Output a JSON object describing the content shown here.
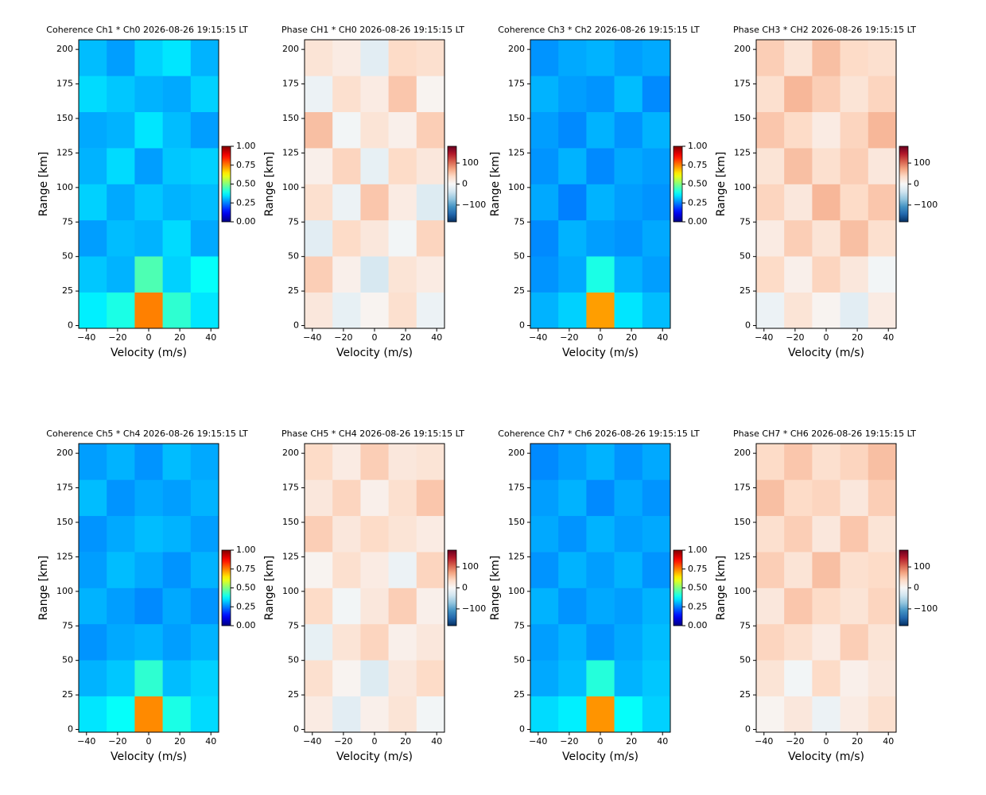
{
  "chart_data": [
    {
      "type": "heatmap",
      "title": "Coherence Ch1 * Ch0 2026-08-26 19:15:15 LT",
      "xlabel": "Velocity (m/s)",
      "ylabel": "Range [km]",
      "colormap": "jet",
      "xlim": [
        -45,
        45
      ],
      "ylim": [
        -2,
        207
      ],
      "xticks": [
        {
          "value": -40,
          "label": "−40"
        },
        {
          "value": -20,
          "label": "−20"
        },
        0,
        20,
        40
      ],
      "yticks": [
        0,
        25,
        50,
        75,
        100,
        125,
        150,
        175,
        200
      ],
      "clim": [
        0,
        1
      ],
      "cticks": [
        {
          "value": 0,
          "label": "0.00"
        },
        0.25,
        {
          "value": 0.5,
          "label": "0.50"
        },
        0.75,
        {
          "value": 1,
          "label": "1.00"
        }
      ],
      "z": [
        [
          0.36,
          0.4,
          0.75,
          0.42,
          0.35
        ],
        [
          0.32,
          0.3,
          0.45,
          0.33,
          0.38
        ],
        [
          0.28,
          0.31,
          0.3,
          0.34,
          0.29
        ],
        [
          0.33,
          0.29,
          0.32,
          0.3,
          0.31
        ],
        [
          0.3,
          0.34,
          0.28,
          0.32,
          0.33
        ],
        [
          0.29,
          0.3,
          0.35,
          0.31,
          0.28
        ],
        [
          0.34,
          0.32,
          0.3,
          0.29,
          0.33
        ],
        [
          0.31,
          0.28,
          0.33,
          0.35,
          0.3
        ]
      ]
    },
    {
      "type": "heatmap",
      "title": "Phase CH1 * CH0 2026-08-26 19:15:15 LT",
      "xlabel": "Velocity (m/s)",
      "ylabel": "Range [km]",
      "colormap": "RdBu_r",
      "xlim": [
        -45,
        45
      ],
      "ylim": [
        -2,
        207
      ],
      "xticks": [
        {
          "value": -40,
          "label": "−40"
        },
        {
          "value": -20,
          "label": "−20"
        },
        0,
        20,
        40
      ],
      "yticks": [
        0,
        25,
        50,
        75,
        100,
        125,
        150,
        175,
        200
      ],
      "clim": [
        -180,
        180
      ],
      "cticks": [
        {
          "value": -100,
          "label": "−100"
        },
        0,
        100
      ],
      "z": [
        [
          20,
          -15,
          5,
          30,
          -10
        ],
        [
          45,
          10,
          -30,
          25,
          15
        ],
        [
          -20,
          35,
          20,
          -5,
          40
        ],
        [
          30,
          -10,
          50,
          15,
          -25
        ],
        [
          10,
          40,
          -15,
          35,
          20
        ],
        [
          55,
          -5,
          25,
          10,
          45
        ],
        [
          -10,
          30,
          15,
          50,
          5
        ],
        [
          25,
          15,
          -20,
          35,
          30
        ]
      ]
    },
    {
      "type": "heatmap",
      "title": "Coherence Ch3 * Ch2 2026-08-26 19:15:15 LT",
      "xlabel": "Velocity (m/s)",
      "ylabel": "Range [km]",
      "colormap": "jet",
      "xlim": [
        -45,
        45
      ],
      "ylim": [
        -2,
        207
      ],
      "xticks": [
        {
          "value": -40,
          "label": "−40"
        },
        {
          "value": -20,
          "label": "−20"
        },
        0,
        20,
        40
      ],
      "yticks": [
        0,
        25,
        50,
        75,
        100,
        125,
        150,
        175,
        200
      ],
      "clim": [
        0,
        1
      ],
      "cticks": [
        {
          "value": 0,
          "label": "0.00"
        },
        0.25,
        {
          "value": 0.5,
          "label": "0.50"
        },
        0.75,
        {
          "value": 1,
          "label": "1.00"
        }
      ],
      "z": [
        [
          0.3,
          0.33,
          0.72,
          0.35,
          0.31
        ],
        [
          0.27,
          0.29,
          0.4,
          0.3,
          0.28
        ],
        [
          0.26,
          0.3,
          0.28,
          0.27,
          0.29
        ],
        [
          0.29,
          0.25,
          0.3,
          0.28,
          0.27
        ],
        [
          0.27,
          0.3,
          0.26,
          0.29,
          0.28
        ],
        [
          0.28,
          0.26,
          0.3,
          0.27,
          0.3
        ],
        [
          0.3,
          0.28,
          0.27,
          0.31,
          0.26
        ],
        [
          0.27,
          0.29,
          0.3,
          0.28,
          0.29
        ]
      ]
    },
    {
      "type": "heatmap",
      "title": "Phase CH3 * CH2 2026-08-26 19:15:15 LT",
      "xlabel": "Velocity (m/s)",
      "ylabel": "Range [km]",
      "colormap": "RdBu_r",
      "xlim": [
        -45,
        45
      ],
      "ylim": [
        -2,
        207
      ],
      "xticks": [
        {
          "value": -40,
          "label": "−40"
        },
        {
          "value": -20,
          "label": "−20"
        },
        0,
        20,
        40
      ],
      "yticks": [
        0,
        25,
        50,
        75,
        100,
        125,
        150,
        175,
        200
      ],
      "clim": [
        -180,
        180
      ],
      "cticks": [
        {
          "value": -100,
          "label": "−100"
        },
        0,
        100
      ],
      "z": [
        [
          -10,
          25,
          5,
          -20,
          15
        ],
        [
          35,
          10,
          40,
          20,
          -5
        ],
        [
          15,
          45,
          25,
          55,
          30
        ],
        [
          40,
          20,
          60,
          35,
          50
        ],
        [
          25,
          55,
          30,
          45,
          20
        ],
        [
          50,
          35,
          15,
          40,
          60
        ],
        [
          30,
          60,
          45,
          25,
          40
        ],
        [
          45,
          25,
          55,
          35,
          30
        ]
      ]
    },
    {
      "type": "heatmap",
      "title": "Coherence Ch5 * Ch4 2026-08-26 19:15:15 LT",
      "xlabel": "Velocity (m/s)",
      "ylabel": "Range [km]",
      "colormap": "jet",
      "xlim": [
        -45,
        45
      ],
      "ylim": [
        -2,
        207
      ],
      "xticks": [
        {
          "value": -40,
          "label": "−40"
        },
        {
          "value": -20,
          "label": "−20"
        },
        0,
        20,
        40
      ],
      "yticks": [
        0,
        25,
        50,
        75,
        100,
        125,
        150,
        175,
        200
      ],
      "clim": [
        0,
        1
      ],
      "cticks": [
        {
          "value": 0,
          "label": "0.00"
        },
        0.25,
        {
          "value": 0.5,
          "label": "0.50"
        },
        0.75,
        {
          "value": 1,
          "label": "1.00"
        }
      ],
      "z": [
        [
          0.35,
          0.38,
          0.74,
          0.4,
          0.34
        ],
        [
          0.3,
          0.32,
          0.42,
          0.31,
          0.33
        ],
        [
          0.27,
          0.29,
          0.3,
          0.28,
          0.3
        ],
        [
          0.3,
          0.28,
          0.26,
          0.29,
          0.27
        ],
        [
          0.28,
          0.31,
          0.29,
          0.27,
          0.3
        ],
        [
          0.27,
          0.29,
          0.31,
          0.3,
          0.28
        ],
        [
          0.31,
          0.27,
          0.29,
          0.28,
          0.3
        ],
        [
          0.28,
          0.3,
          0.27,
          0.31,
          0.29
        ]
      ]
    },
    {
      "type": "heatmap",
      "title": "Phase CH5 * CH4 2026-08-26 19:15:15 LT",
      "xlabel": "Velocity (m/s)",
      "ylabel": "Range [km]",
      "colormap": "RdBu_r",
      "xlim": [
        -45,
        45
      ],
      "ylim": [
        -2,
        207
      ],
      "xticks": [
        {
          "value": -40,
          "label": "−40"
        },
        {
          "value": -20,
          "label": "−20"
        },
        0,
        20,
        40
      ],
      "yticks": [
        0,
        25,
        50,
        75,
        100,
        125,
        150,
        175,
        200
      ],
      "clim": [
        -180,
        180
      ],
      "cticks": [
        {
          "value": -100,
          "label": "−100"
        },
        0,
        100
      ],
      "z": [
        [
          15,
          -20,
          10,
          25,
          -5
        ],
        [
          30,
          5,
          -25,
          20,
          35
        ],
        [
          -15,
          25,
          40,
          10,
          20
        ],
        [
          35,
          -5,
          20,
          45,
          10
        ],
        [
          5,
          30,
          15,
          -10,
          40
        ],
        [
          45,
          20,
          35,
          25,
          15
        ],
        [
          20,
          40,
          10,
          30,
          50
        ],
        [
          35,
          15,
          45,
          20,
          25
        ]
      ]
    },
    {
      "type": "heatmap",
      "title": "Coherence Ch7 * Ch6 2026-08-26 19:15:15 LT",
      "xlabel": "Velocity (m/s)",
      "ylabel": "Range [km]",
      "colormap": "jet",
      "xlim": [
        -45,
        45
      ],
      "ylim": [
        -2,
        207
      ],
      "xticks": [
        {
          "value": -40,
          "label": "−40"
        },
        {
          "value": -20,
          "label": "−20"
        },
        0,
        20,
        40
      ],
      "yticks": [
        0,
        25,
        50,
        75,
        100,
        125,
        150,
        175,
        200
      ],
      "clim": [
        0,
        1
      ],
      "cticks": [
        {
          "value": 0,
          "label": "0.00"
        },
        0.25,
        {
          "value": 0.5,
          "label": "0.50"
        },
        0.75,
        {
          "value": 1,
          "label": "1.00"
        }
      ],
      "z": [
        [
          0.34,
          0.36,
          0.73,
          0.38,
          0.33
        ],
        [
          0.29,
          0.31,
          0.41,
          0.3,
          0.32
        ],
        [
          0.28,
          0.3,
          0.27,
          0.29,
          0.31
        ],
        [
          0.3,
          0.27,
          0.29,
          0.28,
          0.3
        ],
        [
          0.27,
          0.3,
          0.28,
          0.3,
          0.27
        ],
        [
          0.29,
          0.27,
          0.3,
          0.28,
          0.29
        ],
        [
          0.28,
          0.3,
          0.26,
          0.29,
          0.27
        ],
        [
          0.26,
          0.28,
          0.3,
          0.27,
          0.29
        ]
      ]
    },
    {
      "type": "heatmap",
      "title": "Phase CH7 * CH6 2026-08-26 19:15:15 LT",
      "xlabel": "Velocity (m/s)",
      "ylabel": "Range [km]",
      "colormap": "RdBu_r",
      "xlim": [
        -45,
        45
      ],
      "ylim": [
        -2,
        207
      ],
      "xticks": [
        {
          "value": -40,
          "label": "−40"
        },
        {
          "value": -20,
          "label": "−20"
        },
        0,
        20,
        40
      ],
      "yticks": [
        0,
        25,
        50,
        75,
        100,
        125,
        150,
        175,
        200
      ],
      "clim": [
        -180,
        180
      ],
      "cticks": [
        {
          "value": -100,
          "label": "−100"
        },
        0,
        100
      ],
      "z": [
        [
          5,
          20,
          -10,
          15,
          30
        ],
        [
          25,
          -5,
          35,
          10,
          20
        ],
        [
          40,
          30,
          15,
          45,
          25
        ],
        [
          20,
          50,
          35,
          25,
          40
        ],
        [
          45,
          25,
          55,
          30,
          35
        ],
        [
          30,
          45,
          20,
          50,
          25
        ],
        [
          55,
          35,
          40,
          20,
          45
        ],
        [
          35,
          50,
          30,
          40,
          55
        ]
      ]
    }
  ]
}
